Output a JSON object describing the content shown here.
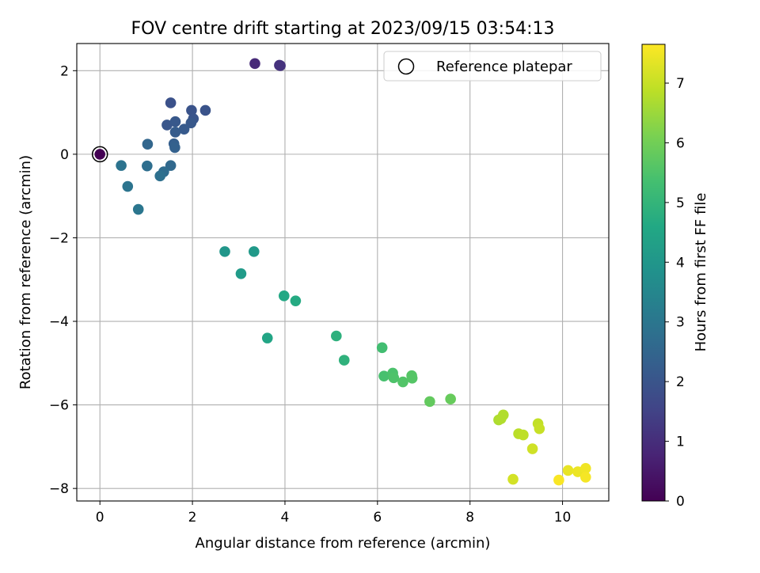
{
  "chart_data": {
    "type": "scatter",
    "title": "FOV centre drift starting at 2023/09/15 03:54:13",
    "xlabel": "Angular distance from reference (arcmin)",
    "ylabel": "Rotation from reference (arcmin)",
    "xlim": [
      -0.5,
      11.0
    ],
    "ylim": [
      -8.3,
      2.65
    ],
    "xticks": [
      0,
      2,
      4,
      6,
      8,
      10
    ],
    "yticks": [
      2,
      0,
      -2,
      -4,
      -6,
      -8
    ],
    "xtick_labels": [
      "0",
      "2",
      "4",
      "6",
      "8",
      "10"
    ],
    "ytick_labels": [
      "2",
      "0",
      "−2",
      "−4",
      "−6",
      "−8"
    ],
    "grid": true,
    "legend": {
      "placement": "top-right",
      "entries": [
        "Reference platepar"
      ]
    },
    "colorbar": {
      "label": "Hours from first FF file",
      "colormap": "viridis",
      "range": [
        0,
        7.65
      ],
      "ticks": [
        0,
        1,
        2,
        3,
        4,
        5,
        6,
        7
      ],
      "tick_labels": [
        "0",
        "1",
        "2",
        "3",
        "4",
        "5",
        "6",
        "7"
      ]
    },
    "reference_point": {
      "x": 0,
      "y": 0
    },
    "points": [
      {
        "x": 0.0,
        "y": 0.0,
        "c": 0.0
      },
      {
        "x": 3.35,
        "y": 2.17,
        "c": 0.9
      },
      {
        "x": 3.88,
        "y": 2.13,
        "c": 1.05
      },
      {
        "x": 3.9,
        "y": 2.12,
        "c": 1.1
      },
      {
        "x": 1.53,
        "y": 1.23,
        "c": 1.9
      },
      {
        "x": 1.98,
        "y": 1.05,
        "c": 1.95
      },
      {
        "x": 2.28,
        "y": 1.05,
        "c": 1.95
      },
      {
        "x": 2.02,
        "y": 0.85,
        "c": 2.0
      },
      {
        "x": 1.45,
        "y": 0.7,
        "c": 2.05
      },
      {
        "x": 1.63,
        "y": 0.78,
        "c": 2.1
      },
      {
        "x": 1.97,
        "y": 0.75,
        "c": 2.1
      },
      {
        "x": 1.82,
        "y": 0.6,
        "c": 2.15
      },
      {
        "x": 1.63,
        "y": 0.53,
        "c": 2.2
      },
      {
        "x": 1.6,
        "y": 0.25,
        "c": 2.3
      },
      {
        "x": 1.62,
        "y": 0.16,
        "c": 2.35
      },
      {
        "x": 1.03,
        "y": 0.24,
        "c": 2.5
      },
      {
        "x": 1.53,
        "y": -0.27,
        "c": 2.6
      },
      {
        "x": 1.38,
        "y": -0.42,
        "c": 2.7
      },
      {
        "x": 1.02,
        "y": -0.28,
        "c": 2.75
      },
      {
        "x": 1.3,
        "y": -0.52,
        "c": 2.8
      },
      {
        "x": 0.46,
        "y": -0.27,
        "c": 2.9
      },
      {
        "x": 0.6,
        "y": -0.77,
        "c": 2.95
      },
      {
        "x": 0.83,
        "y": -1.32,
        "c": 3.0
      },
      {
        "x": 2.7,
        "y": -2.33,
        "c": 4.0
      },
      {
        "x": 3.33,
        "y": -2.33,
        "c": 4.1
      },
      {
        "x": 3.05,
        "y": -2.86,
        "c": 4.15
      },
      {
        "x": 3.98,
        "y": -3.39,
        "c": 4.6
      },
      {
        "x": 4.23,
        "y": -3.51,
        "c": 4.65
      },
      {
        "x": 3.62,
        "y": -4.4,
        "c": 4.5
      },
      {
        "x": 5.11,
        "y": -4.35,
        "c": 4.85
      },
      {
        "x": 5.28,
        "y": -4.93,
        "c": 4.9
      },
      {
        "x": 6.1,
        "y": -4.63,
        "c": 5.3
      },
      {
        "x": 6.14,
        "y": -5.31,
        "c": 5.4
      },
      {
        "x": 6.33,
        "y": -5.24,
        "c": 5.45
      },
      {
        "x": 6.35,
        "y": -5.35,
        "c": 5.5
      },
      {
        "x": 6.55,
        "y": -5.45,
        "c": 5.55
      },
      {
        "x": 6.74,
        "y": -5.3,
        "c": 5.6
      },
      {
        "x": 6.75,
        "y": -5.36,
        "c": 5.6
      },
      {
        "x": 7.13,
        "y": -5.92,
        "c": 5.8
      },
      {
        "x": 7.58,
        "y": -5.86,
        "c": 5.85
      },
      {
        "x": 8.62,
        "y": -6.36,
        "c": 6.7
      },
      {
        "x": 8.72,
        "y": -6.24,
        "c": 6.75
      },
      {
        "x": 8.67,
        "y": -6.33,
        "c": 6.75
      },
      {
        "x": 9.05,
        "y": -6.69,
        "c": 6.85
      },
      {
        "x": 9.15,
        "y": -6.72,
        "c": 6.9
      },
      {
        "x": 9.47,
        "y": -6.45,
        "c": 6.95
      },
      {
        "x": 9.5,
        "y": -6.57,
        "c": 7.0
      },
      {
        "x": 9.35,
        "y": -7.05,
        "c": 7.1
      },
      {
        "x": 8.93,
        "y": -7.78,
        "c": 7.15
      },
      {
        "x": 10.12,
        "y": -7.57,
        "c": 7.4
      },
      {
        "x": 10.33,
        "y": -7.6,
        "c": 7.45
      },
      {
        "x": 10.5,
        "y": -7.52,
        "c": 7.5
      },
      {
        "x": 10.5,
        "y": -7.73,
        "c": 7.55
      },
      {
        "x": 9.92,
        "y": -7.8,
        "c": 7.6
      }
    ]
  }
}
